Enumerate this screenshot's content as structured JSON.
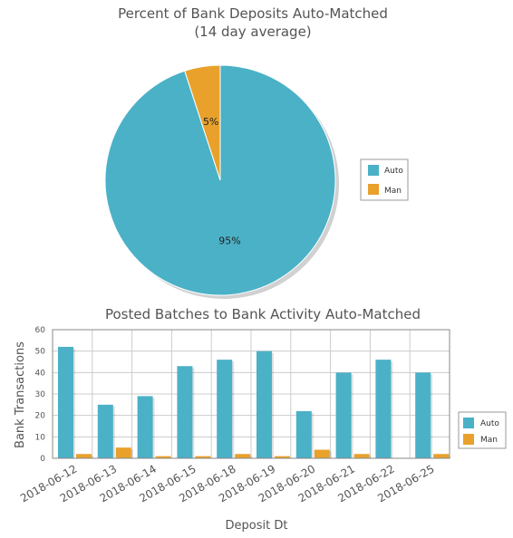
{
  "chart_data": [
    {
      "type": "pie",
      "title": "Percent of Bank Deposits Auto-Matched",
      "subtitle": "(14 day average)",
      "slices": [
        {
          "name": "Auto",
          "value": 95,
          "label": "95%"
        },
        {
          "name": "Man",
          "value": 5,
          "label": "5%"
        }
      ],
      "legend": {
        "placement": "right",
        "entries": [
          "Auto",
          "Man"
        ]
      }
    },
    {
      "type": "bar",
      "title": "Posted Batches to Bank Activity Auto-Matched",
      "xlabel": "Deposit Dt",
      "ylabel": "Bank Transactions",
      "ylim": [
        0,
        60
      ],
      "yticks": [
        "0",
        "10",
        "20",
        "30",
        "40",
        "50",
        "60"
      ],
      "grid": true,
      "categories": [
        "2018-06-12",
        "2018-06-13",
        "2018-06-14",
        "2018-06-15",
        "2018-06-18",
        "2018-06-19",
        "2018-06-20",
        "2018-06-21",
        "2018-06-22",
        "2018-06-25"
      ],
      "series": [
        {
          "name": "Auto",
          "values": [
            52,
            25,
            29,
            43,
            46,
            50,
            22,
            40,
            46,
            40
          ]
        },
        {
          "name": "Man",
          "values": [
            2,
            5,
            1,
            1,
            2,
            1,
            4,
            2,
            0,
            2
          ]
        }
      ],
      "legend": {
        "placement": "right",
        "entries": [
          "Auto",
          "Man"
        ]
      }
    }
  ],
  "colors": {
    "auto": "#4bb1c7",
    "man": "#e9a12b",
    "text": "#545454",
    "grid": "#cccccc",
    "axis": "#888888"
  }
}
